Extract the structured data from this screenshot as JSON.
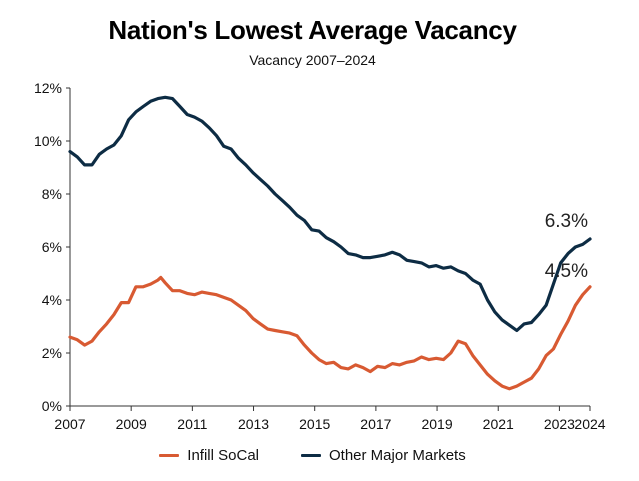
{
  "chart_data": {
    "type": "line",
    "title": "Nation's Lowest Average Vacancy",
    "subtitle": "Vacancy 2007–2024",
    "xlabel": "",
    "ylabel": "",
    "xlim": [
      2007,
      2024
    ],
    "ylim": [
      0,
      12
    ],
    "x_ticks": [
      "2007",
      "2009",
      "2011",
      "2013",
      "2015",
      "2017",
      "2019",
      "2021",
      "2023",
      "2024"
    ],
    "x_tick_values": [
      2007,
      2009,
      2011,
      2013,
      2015,
      2017,
      2019,
      2021,
      2023,
      2024
    ],
    "y_ticks": [
      "0%",
      "2%",
      "4%",
      "6%",
      "8%",
      "10%",
      "12%"
    ],
    "y_tick_values": [
      0,
      2,
      4,
      6,
      8,
      10,
      12
    ],
    "legend_position": "bottom",
    "grid": false,
    "series": [
      {
        "name": "Infill SoCal",
        "color": "#d85a32",
        "end_label": "4.5%",
        "points": [
          [
            2007.0,
            2.6
          ],
          [
            2007.25,
            2.5
          ],
          [
            2007.5,
            2.3
          ],
          [
            2007.75,
            2.45
          ],
          [
            2008.0,
            2.8
          ],
          [
            2008.25,
            3.1
          ],
          [
            2008.5,
            3.45
          ],
          [
            2008.75,
            3.9
          ],
          [
            2009.0,
            3.9
          ],
          [
            2009.25,
            4.5
          ],
          [
            2009.5,
            4.5
          ],
          [
            2009.75,
            4.6
          ],
          [
            2010.0,
            4.75
          ],
          [
            2010.1,
            4.85
          ],
          [
            2010.25,
            4.65
          ],
          [
            2010.5,
            4.35
          ],
          [
            2010.75,
            4.35
          ],
          [
            2011.0,
            4.25
          ],
          [
            2011.25,
            4.2
          ],
          [
            2011.5,
            4.3
          ],
          [
            2011.75,
            4.25
          ],
          [
            2012.0,
            4.2
          ],
          [
            2012.25,
            4.1
          ],
          [
            2012.5,
            4.0
          ],
          [
            2012.75,
            3.8
          ],
          [
            2013.0,
            3.6
          ],
          [
            2013.25,
            3.3
          ],
          [
            2013.5,
            3.1
          ],
          [
            2013.75,
            2.9
          ],
          [
            2014.0,
            2.85
          ],
          [
            2014.25,
            2.8
          ],
          [
            2014.5,
            2.75
          ],
          [
            2014.75,
            2.65
          ],
          [
            2015.0,
            2.3
          ],
          [
            2015.25,
            2.0
          ],
          [
            2015.5,
            1.75
          ],
          [
            2015.75,
            1.6
          ],
          [
            2016.0,
            1.65
          ],
          [
            2016.25,
            1.45
          ],
          [
            2016.5,
            1.4
          ],
          [
            2016.75,
            1.55
          ],
          [
            2017.0,
            1.45
          ],
          [
            2017.25,
            1.3
          ],
          [
            2017.5,
            1.5
          ],
          [
            2017.75,
            1.45
          ],
          [
            2018.0,
            1.6
          ],
          [
            2018.25,
            1.55
          ],
          [
            2018.5,
            1.65
          ],
          [
            2018.75,
            1.7
          ],
          [
            2019.0,
            1.85
          ],
          [
            2019.25,
            1.75
          ],
          [
            2019.5,
            1.8
          ],
          [
            2019.75,
            1.75
          ],
          [
            2020.0,
            2.0
          ],
          [
            2020.25,
            2.45
          ],
          [
            2020.5,
            2.35
          ],
          [
            2020.75,
            1.9
          ],
          [
            2021.0,
            1.55
          ],
          [
            2021.25,
            1.2
          ],
          [
            2021.5,
            0.95
          ],
          [
            2021.75,
            0.75
          ],
          [
            2022.0,
            0.65
          ],
          [
            2022.25,
            0.75
          ],
          [
            2022.5,
            0.9
          ],
          [
            2022.75,
            1.05
          ],
          [
            2023.0,
            1.4
          ],
          [
            2023.25,
            1.9
          ],
          [
            2023.5,
            2.15
          ],
          [
            2023.75,
            2.7
          ],
          [
            2024.0,
            3.2
          ],
          [
            2024.25,
            3.8
          ],
          [
            2024.5,
            4.2
          ],
          [
            2024.75,
            4.5
          ]
        ]
      },
      {
        "name": "Other Major Markets",
        "color": "#0d2c44",
        "end_label": "6.3%",
        "points": [
          [
            2007.0,
            9.6
          ],
          [
            2007.25,
            9.4
          ],
          [
            2007.5,
            9.1
          ],
          [
            2007.75,
            9.1
          ],
          [
            2008.0,
            9.5
          ],
          [
            2008.25,
            9.7
          ],
          [
            2008.5,
            9.85
          ],
          [
            2008.75,
            10.2
          ],
          [
            2009.0,
            10.8
          ],
          [
            2009.25,
            11.1
          ],
          [
            2009.5,
            11.3
          ],
          [
            2009.75,
            11.5
          ],
          [
            2010.0,
            11.6
          ],
          [
            2010.25,
            11.65
          ],
          [
            2010.5,
            11.6
          ],
          [
            2010.75,
            11.3
          ],
          [
            2011.0,
            11.0
          ],
          [
            2011.25,
            10.9
          ],
          [
            2011.5,
            10.75
          ],
          [
            2011.75,
            10.5
          ],
          [
            2012.0,
            10.2
          ],
          [
            2012.25,
            9.8
          ],
          [
            2012.5,
            9.7
          ],
          [
            2012.75,
            9.35
          ],
          [
            2013.0,
            9.1
          ],
          [
            2013.25,
            8.8
          ],
          [
            2013.5,
            8.55
          ],
          [
            2013.75,
            8.3
          ],
          [
            2014.0,
            8.0
          ],
          [
            2014.25,
            7.75
          ],
          [
            2014.5,
            7.5
          ],
          [
            2014.75,
            7.2
          ],
          [
            2015.0,
            7.0
          ],
          [
            2015.25,
            6.65
          ],
          [
            2015.5,
            6.6
          ],
          [
            2015.75,
            6.35
          ],
          [
            2016.0,
            6.2
          ],
          [
            2016.25,
            6.0
          ],
          [
            2016.5,
            5.75
          ],
          [
            2016.75,
            5.7
          ],
          [
            2017.0,
            5.6
          ],
          [
            2017.25,
            5.6
          ],
          [
            2017.5,
            5.65
          ],
          [
            2017.75,
            5.7
          ],
          [
            2018.0,
            5.8
          ],
          [
            2018.25,
            5.7
          ],
          [
            2018.5,
            5.5
          ],
          [
            2018.75,
            5.45
          ],
          [
            2019.0,
            5.4
          ],
          [
            2019.25,
            5.25
          ],
          [
            2019.5,
            5.3
          ],
          [
            2019.75,
            5.2
          ],
          [
            2020.0,
            5.25
          ],
          [
            2020.25,
            5.1
          ],
          [
            2020.5,
            5.0
          ],
          [
            2020.75,
            4.75
          ],
          [
            2021.0,
            4.6
          ],
          [
            2021.25,
            4.0
          ],
          [
            2021.5,
            3.55
          ],
          [
            2021.75,
            3.25
          ],
          [
            2022.0,
            3.05
          ],
          [
            2022.25,
            2.85
          ],
          [
            2022.5,
            3.1
          ],
          [
            2022.75,
            3.15
          ],
          [
            2023.0,
            3.45
          ],
          [
            2023.25,
            3.8
          ],
          [
            2023.5,
            4.6
          ],
          [
            2023.75,
            5.4
          ],
          [
            2024.0,
            5.75
          ],
          [
            2024.25,
            6.0
          ],
          [
            2024.5,
            6.1
          ],
          [
            2024.75,
            6.3
          ]
        ]
      }
    ]
  }
}
